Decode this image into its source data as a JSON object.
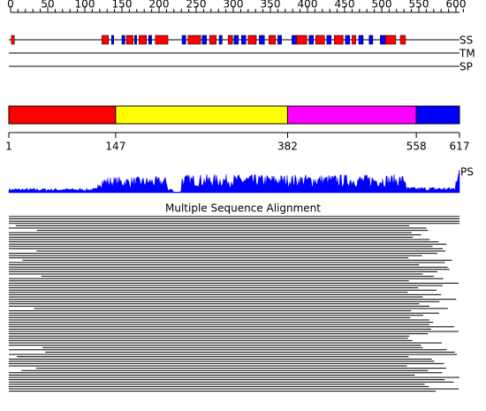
{
  "ruler": {
    "ticks": [
      0,
      50,
      100,
      150,
      200,
      250,
      300,
      350,
      400,
      450,
      500,
      550,
      600
    ]
  },
  "tracks": [
    "SS",
    "TM",
    "SP"
  ],
  "ss_elements": [
    {
      "kind": "helix",
      "start": 1,
      "end": 5
    },
    {
      "kind": "helix",
      "start": 123,
      "end": 132
    },
    {
      "kind": "strand",
      "start": 136,
      "end": 139
    },
    {
      "kind": "strand",
      "start": 150,
      "end": 154
    },
    {
      "kind": "helix",
      "start": 156,
      "end": 165
    },
    {
      "kind": "strand",
      "start": 167,
      "end": 170
    },
    {
      "kind": "helix",
      "start": 173,
      "end": 183
    },
    {
      "kind": "strand",
      "start": 186,
      "end": 190
    },
    {
      "kind": "helix",
      "start": 195,
      "end": 212
    },
    {
      "kind": "strand",
      "start": 231,
      "end": 236
    },
    {
      "kind": "helix",
      "start": 239,
      "end": 256
    },
    {
      "kind": "strand",
      "start": 258,
      "end": 264
    },
    {
      "kind": "helix",
      "start": 268,
      "end": 277
    },
    {
      "kind": "strand",
      "start": 281,
      "end": 285
    },
    {
      "kind": "helix",
      "start": 293,
      "end": 299
    },
    {
      "kind": "strand",
      "start": 301,
      "end": 307
    },
    {
      "kind": "strand",
      "start": 311,
      "end": 317
    },
    {
      "kind": "helix",
      "start": 320,
      "end": 331
    },
    {
      "kind": "strand",
      "start": 335,
      "end": 342
    },
    {
      "kind": "helix",
      "start": 348,
      "end": 357
    },
    {
      "kind": "strand",
      "start": 360,
      "end": 365
    },
    {
      "kind": "strand",
      "start": 379,
      "end": 385
    },
    {
      "kind": "helix",
      "start": 385,
      "end": 399
    },
    {
      "kind": "strand",
      "start": 402,
      "end": 408
    },
    {
      "kind": "helix",
      "start": 411,
      "end": 423
    },
    {
      "kind": "strand",
      "start": 426,
      "end": 432
    },
    {
      "kind": "helix",
      "start": 436,
      "end": 448
    },
    {
      "kind": "strand",
      "start": 451,
      "end": 457
    },
    {
      "kind": "helix",
      "start": 460,
      "end": 465
    },
    {
      "kind": "strand",
      "start": 469,
      "end": 475
    },
    {
      "kind": "strand",
      "start": 483,
      "end": 488
    },
    {
      "kind": "strand",
      "start": 498,
      "end": 505
    },
    {
      "kind": "helix",
      "start": 505,
      "end": 519
    },
    {
      "kind": "helix",
      "start": 525,
      "end": 532
    }
  ],
  "domains": [
    {
      "start": 1,
      "end": 147,
      "color": "#ff0000"
    },
    {
      "start": 147,
      "end": 382,
      "color": "#ffff00"
    },
    {
      "start": 382,
      "end": 558,
      "color": "#ff00ff"
    },
    {
      "start": 558,
      "end": 617,
      "color": "#0000ff"
    }
  ],
  "boundaries": [
    1,
    147,
    382,
    558,
    617
  ],
  "profile_label": "PS",
  "msa_title": "Multiple Sequence Alignment"
}
